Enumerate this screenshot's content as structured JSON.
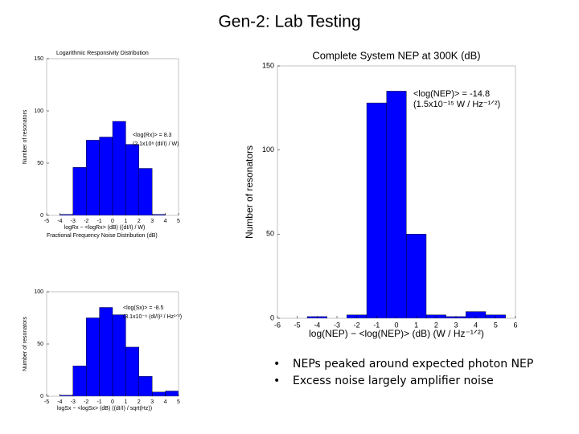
{
  "title": "Gen-2: Lab Testing",
  "bullets": [
    "NEPs peaked around expected photon NEP",
    "Excess noise largely amplifier noise"
  ],
  "chart_data": [
    {
      "type": "histogram",
      "title": "Logarithmic Responsivity Distribution",
      "color": "#0000ff",
      "xlabel": "logRx − <logRx> (dB) ((dI/I) / W)",
      "ylabel": "Number of resonators",
      "bins": [
        -4,
        -3,
        -2,
        -1,
        0,
        1,
        2,
        3,
        4
      ],
      "counts": [
        1,
        46,
        72,
        75,
        90,
        68,
        45,
        1
      ],
      "xlim": [
        -5,
        5
      ],
      "ylim": [
        0,
        150
      ],
      "xticks": [
        -5,
        -4,
        -3,
        -2,
        -1,
        0,
        1,
        2,
        3,
        4,
        5
      ],
      "yticks": [
        0,
        50,
        100,
        150
      ],
      "annotations": [
        "<log(Rx)> = 8.3",
        "(2.1x10⁸ (dI/I) / W)"
      ]
    },
    {
      "type": "histogram",
      "title": "Fractional Frequency Noise Distribution (dB)",
      "color": "#0000ff",
      "xlabel": "logSx − <logSx> (dB) ((dI/I) / sqrt(Hz))",
      "ylabel": "Number of resonators",
      "bins": [
        -4,
        -3,
        -2,
        -1,
        0,
        1,
        2,
        3,
        4,
        5
      ],
      "counts": [
        1,
        29,
        75,
        85,
        78,
        47,
        19,
        4,
        5
      ],
      "xlim": [
        -5,
        5
      ],
      "ylim": [
        0,
        100
      ],
      "xticks": [
        -5,
        -4,
        -3,
        -2,
        -1,
        0,
        1,
        2,
        3,
        4,
        5
      ],
      "yticks": [
        0,
        50,
        100
      ],
      "annotations": [
        "<log(Sx)> = -8.5",
        "(3.1x10⁻⁹ (dI/I)² / Hz¹ᐟ²)"
      ]
    },
    {
      "type": "histogram",
      "title": "Complete System NEP at 300K (dB)",
      "color": "#0000ff",
      "xlabel": "log(NEP) − <log(NEP)> (dB)  (W / Hz⁻¹ᐟ²)",
      "ylabel": "Number of resonators",
      "bins": [
        -6.5,
        -5.5,
        -4.5,
        -3.5,
        -2.5,
        -1.5,
        -0.5,
        0.5,
        1.5,
        2.5,
        3.5,
        4.5,
        5.5,
        6.5
      ],
      "counts": [
        0,
        0,
        1,
        0,
        2,
        128,
        135,
        50,
        2,
        1,
        4,
        2,
        0
      ],
      "xlim": [
        -6,
        6
      ],
      "ylim": [
        0,
        150
      ],
      "xticks": [
        -6,
        -5,
        -4,
        -3,
        -2,
        -1,
        0,
        1,
        2,
        3,
        4,
        5,
        6
      ],
      "yticks": [
        0,
        50,
        100,
        150
      ],
      "annotations": [
        "<log(NEP)> = -14.8",
        "(1.5x10⁻¹⁵ W / Hz⁻¹ᐟ²)"
      ]
    }
  ]
}
